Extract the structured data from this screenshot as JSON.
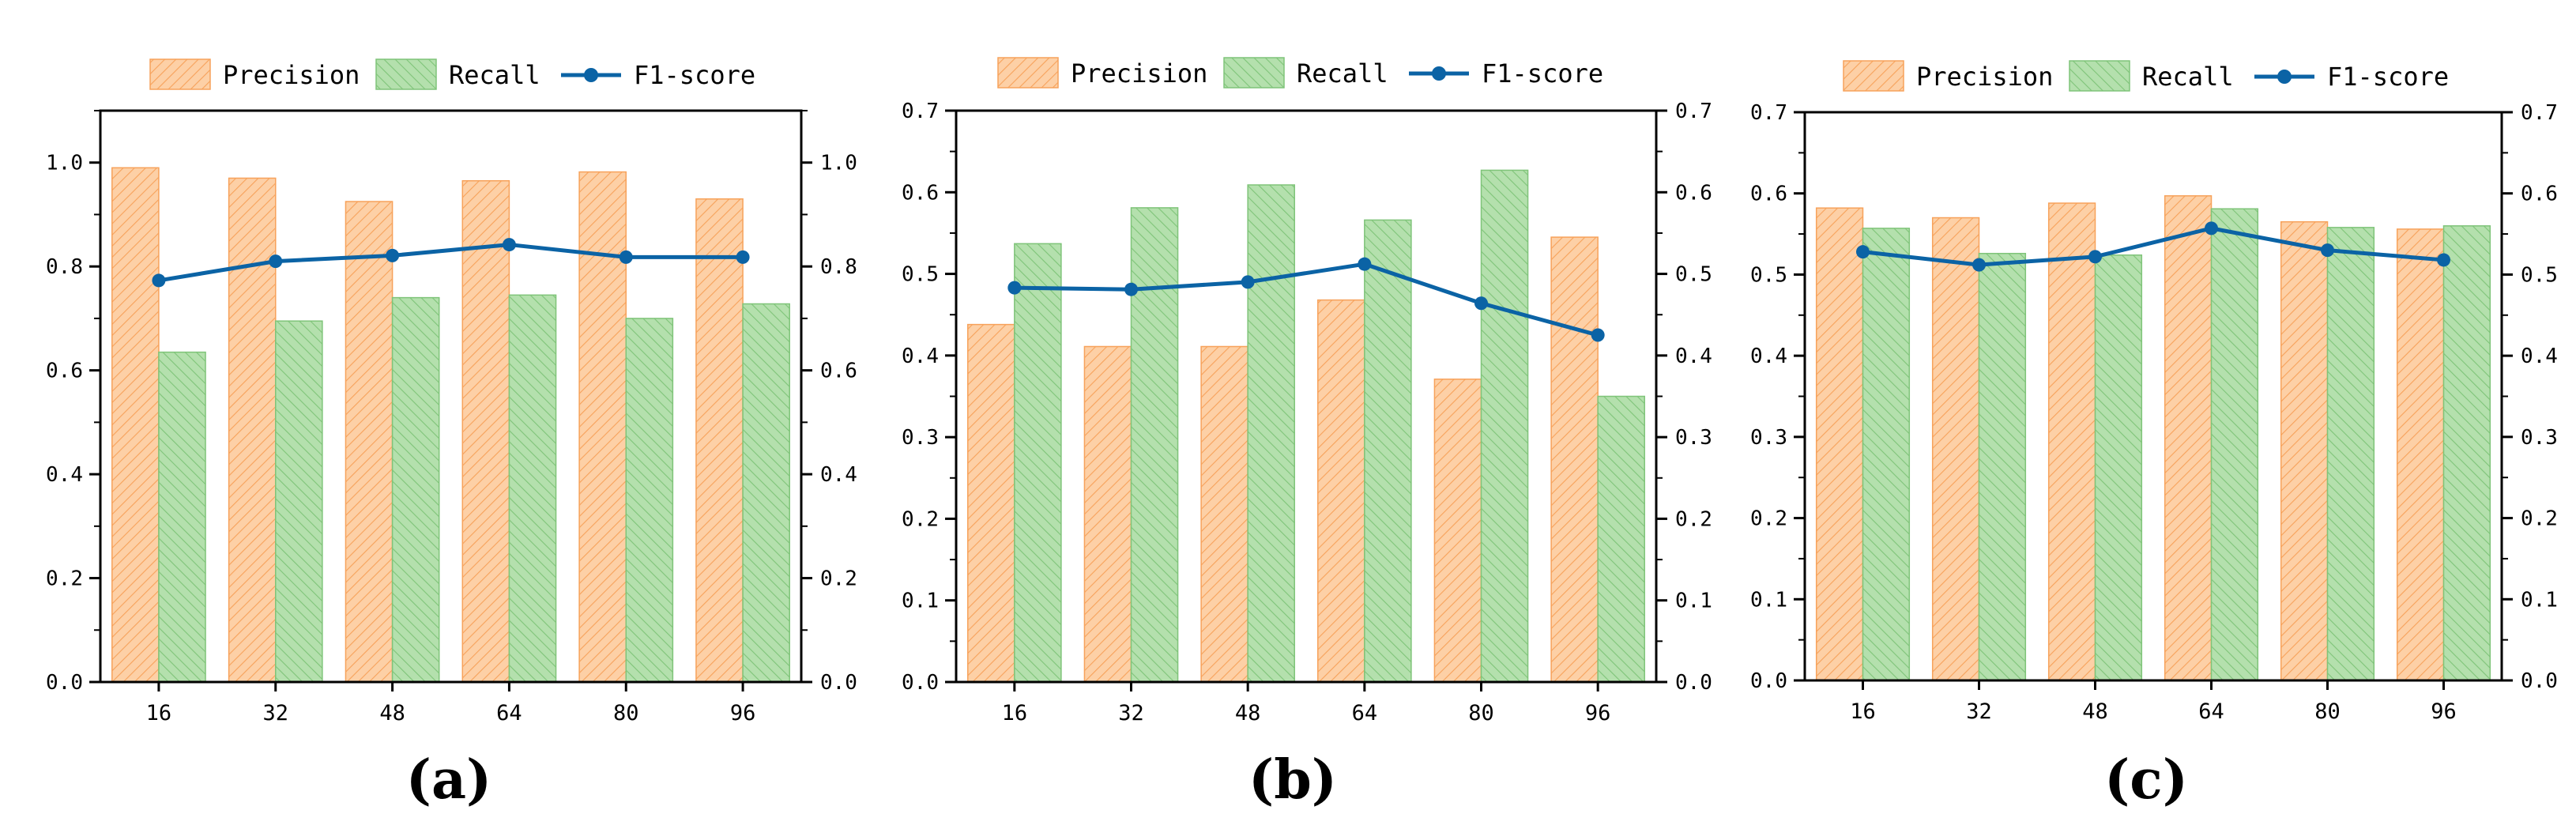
{
  "colors": {
    "precision_fill": "#fdd0a6",
    "precision_stroke": "#f7a25b",
    "recall_fill": "#b4e0ad",
    "recall_stroke": "#7fc479",
    "f1": "#0b63a5",
    "axis": "#000000"
  },
  "chart_data": [
    {
      "type": "bar",
      "panel_label": "(a)",
      "categories": [
        "16",
        "32",
        "48",
        "64",
        "80",
        "96"
      ],
      "series": [
        {
          "name": "Precision",
          "kind": "bar",
          "values": [
            0.99,
            0.97,
            0.925,
            0.965,
            0.982,
            0.93
          ]
        },
        {
          "name": "Recall",
          "kind": "bar",
          "values": [
            0.635,
            0.695,
            0.74,
            0.745,
            0.7,
            0.728
          ]
        },
        {
          "name": "F1-score",
          "kind": "line",
          "values": [
            0.773,
            0.81,
            0.821,
            0.842,
            0.818,
            0.818
          ]
        }
      ],
      "legend": [
        "Precision",
        "Recall",
        "F1-score"
      ],
      "legend_position": "top",
      "ylim": [
        0,
        1.1
      ],
      "yticks": [
        "0.0",
        "0.2",
        "0.4",
        "0.6",
        "0.8",
        "1.0"
      ],
      "ytick_values": [
        0,
        0.2,
        0.4,
        0.6,
        0.8,
        1.0
      ],
      "right_axis": true,
      "xlabel": "",
      "ylabel": ""
    },
    {
      "type": "bar",
      "panel_label": "(b)",
      "categories": [
        "16",
        "32",
        "48",
        "64",
        "80",
        "96"
      ],
      "series": [
        {
          "name": "Precision",
          "kind": "bar",
          "values": [
            0.438,
            0.411,
            0.411,
            0.468,
            0.371,
            0.545
          ]
        },
        {
          "name": "Recall",
          "kind": "bar",
          "values": [
            0.537,
            0.581,
            0.609,
            0.566,
            0.627,
            0.35
          ]
        },
        {
          "name": "F1-score",
          "kind": "line",
          "values": [
            0.483,
            0.481,
            0.49,
            0.512,
            0.464,
            0.425
          ]
        }
      ],
      "legend": [
        "Precision",
        "Recall",
        "F1-score"
      ],
      "legend_position": "top",
      "ylim": [
        0,
        0.7
      ],
      "yticks": [
        "0.0",
        "0.1",
        "0.2",
        "0.3",
        "0.4",
        "0.5",
        "0.6",
        "0.7"
      ],
      "ytick_values": [
        0,
        0.1,
        0.2,
        0.3,
        0.4,
        0.5,
        0.6,
        0.7
      ],
      "right_axis": true,
      "xlabel": "",
      "ylabel": ""
    },
    {
      "type": "bar",
      "panel_label": "(c)",
      "categories": [
        "16",
        "32",
        "48",
        "64",
        "80",
        "96"
      ],
      "series": [
        {
          "name": "Precision",
          "kind": "bar",
          "values": [
            0.582,
            0.57,
            0.588,
            0.597,
            0.565,
            0.556
          ]
        },
        {
          "name": "Recall",
          "kind": "bar",
          "values": [
            0.557,
            0.526,
            0.524,
            0.581,
            0.558,
            0.56
          ]
        },
        {
          "name": "F1-score",
          "kind": "line",
          "values": [
            0.528,
            0.512,
            0.522,
            0.557,
            0.53,
            0.518
          ]
        }
      ],
      "legend": [
        "Precision",
        "Recall",
        "F1-score"
      ],
      "legend_position": "top",
      "ylim": [
        0,
        0.7
      ],
      "yticks": [
        "0.0",
        "0.1",
        "0.2",
        "0.3",
        "0.4",
        "0.5",
        "0.6",
        "0.7"
      ],
      "ytick_values": [
        0,
        0.1,
        0.2,
        0.3,
        0.4,
        0.5,
        0.6,
        0.7
      ],
      "right_axis": true,
      "xlabel": "",
      "ylabel": ""
    }
  ]
}
